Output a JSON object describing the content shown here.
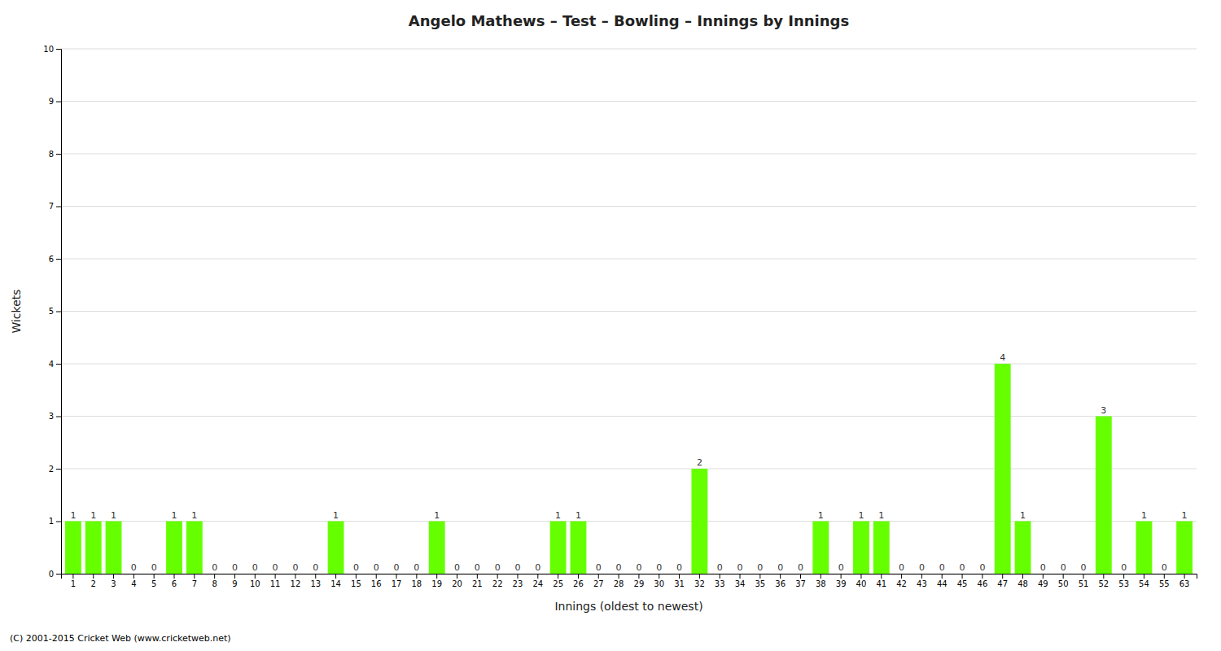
{
  "chart_data": {
    "type": "bar",
    "title": "Angelo Mathews – Test – Bowling – Innings by Innings",
    "x_label": "Innings (oldest to newest)",
    "y_label": "Wickets",
    "annotations": [
      "(C) 2001-2015 Cricket Web (www.cricketweb.net)"
    ],
    "categories": [
      "1",
      "2",
      "3",
      "4",
      "5",
      "6",
      "7",
      "8",
      "9",
      "10",
      "11",
      "12",
      "13",
      "14",
      "15",
      "16",
      "17",
      "18",
      "19",
      "20",
      "21",
      "22",
      "23",
      "24",
      "25",
      "26",
      "27",
      "28",
      "29",
      "30",
      "31",
      "32",
      "33",
      "34",
      "35",
      "36",
      "37",
      "38",
      "39",
      "40",
      "41",
      "42",
      "43",
      "44",
      "45",
      "46",
      "47",
      "48",
      "49",
      "50",
      "51",
      "52",
      "53",
      "54",
      "55",
      "63"
    ],
    "values": [
      1,
      1,
      1,
      0,
      0,
      1,
      1,
      0,
      0,
      0,
      0,
      0,
      0,
      1,
      0,
      0,
      0,
      0,
      1,
      0,
      0,
      0,
      0,
      0,
      1,
      1,
      0,
      0,
      0,
      0,
      0,
      2,
      0,
      0,
      0,
      0,
      0,
      1,
      0,
      1,
      1,
      0,
      0,
      0,
      0,
      0,
      4,
      1,
      0,
      0,
      0,
      3,
      0,
      1,
      0,
      1
    ],
    "color": "#66ff00",
    "ylim": [
      0,
      10
    ],
    "yticks": [
      0,
      1,
      2,
      3,
      4,
      5,
      6,
      7,
      8,
      9,
      10
    ],
    "grid": true,
    "data_labels": true
  }
}
